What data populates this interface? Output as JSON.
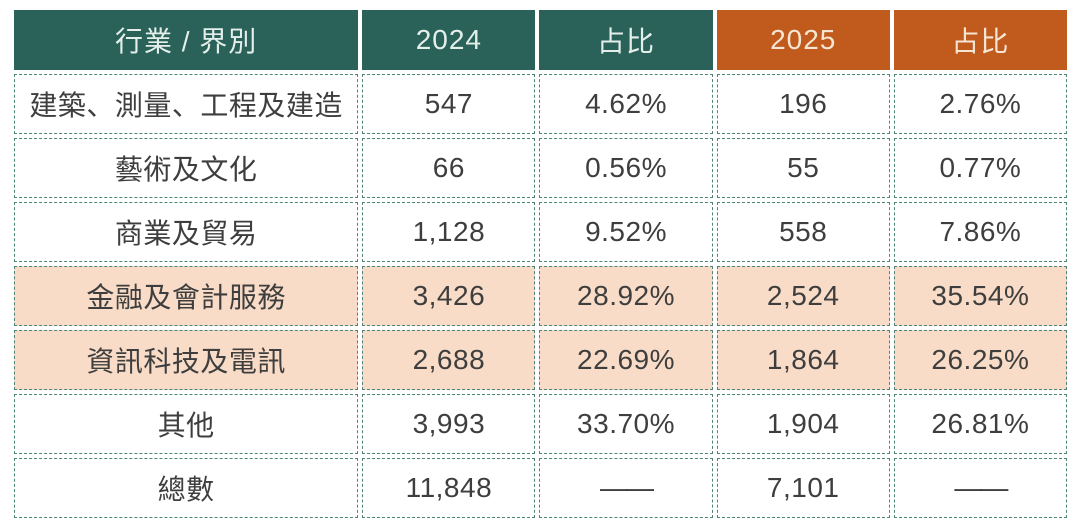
{
  "table": {
    "columns": [
      {
        "label": "行業 / 界別",
        "theme": "teal",
        "key": "industry"
      },
      {
        "label": "2024",
        "theme": "teal",
        "key": "count_2024"
      },
      {
        "label": "占比",
        "theme": "teal",
        "key": "share_2024"
      },
      {
        "label": "2025",
        "theme": "orange",
        "key": "count_2025"
      },
      {
        "label": "占比",
        "theme": "orange",
        "key": "share_2025"
      }
    ],
    "rows": [
      {
        "industry": "建築、測量、工程及建造",
        "count_2024": "547",
        "share_2024": "4.62%",
        "count_2025": "196",
        "share_2025": "2.76%",
        "highlight": false
      },
      {
        "industry": "藝術及文化",
        "count_2024": "66",
        "share_2024": "0.56%",
        "count_2025": "55",
        "share_2025": "0.77%",
        "highlight": false
      },
      {
        "industry": "商業及貿易",
        "count_2024": "1,128",
        "share_2024": "9.52%",
        "count_2025": "558",
        "share_2025": "7.86%",
        "highlight": false
      },
      {
        "industry": "金融及會計服務",
        "count_2024": "3,426",
        "share_2024": "28.92%",
        "count_2025": "2,524",
        "share_2025": "35.54%",
        "highlight": true
      },
      {
        "industry": "資訊科技及電訊",
        "count_2024": "2,688",
        "share_2024": "22.69%",
        "count_2025": "1,864",
        "share_2025": "26.25%",
        "highlight": true
      },
      {
        "industry": "其他",
        "count_2024": "3,993",
        "share_2024": "33.70%",
        "count_2025": "1,904",
        "share_2025": "26.81%",
        "highlight": false
      },
      {
        "industry": "總數",
        "count_2024": "11,848",
        "share_2024": "——",
        "count_2025": "7,101",
        "share_2025": "——",
        "highlight": false
      }
    ],
    "colors": {
      "header_teal": "#2a625a",
      "header_orange": "#c05a1d",
      "highlight_row": "#f8dcc7",
      "cell_border": "#4c867a",
      "body_text": "#3e3e3e"
    }
  },
  "chart_data": {
    "type": "table",
    "title": "",
    "categories": [
      "建築、測量、工程及建造",
      "藝術及文化",
      "商業及貿易",
      "金融及會計服務",
      "資訊科技及電訊",
      "其他",
      "總數"
    ],
    "series": [
      {
        "name": "2024",
        "values": [
          547,
          66,
          1128,
          3426,
          2688,
          3993,
          11848
        ]
      },
      {
        "name": "占比 2024",
        "values": [
          "4.62%",
          "0.56%",
          "9.52%",
          "28.92%",
          "22.69%",
          "33.70%",
          null
        ]
      },
      {
        "name": "2025",
        "values": [
          196,
          55,
          558,
          2524,
          1864,
          1904,
          7101
        ]
      },
      {
        "name": "占比 2025",
        "values": [
          "2.76%",
          "0.77%",
          "7.86%",
          "35.54%",
          "26.25%",
          "26.81%",
          null
        ]
      }
    ],
    "highlighted_rows": [
      "金融及會計服務",
      "資訊科技及電訊"
    ]
  }
}
